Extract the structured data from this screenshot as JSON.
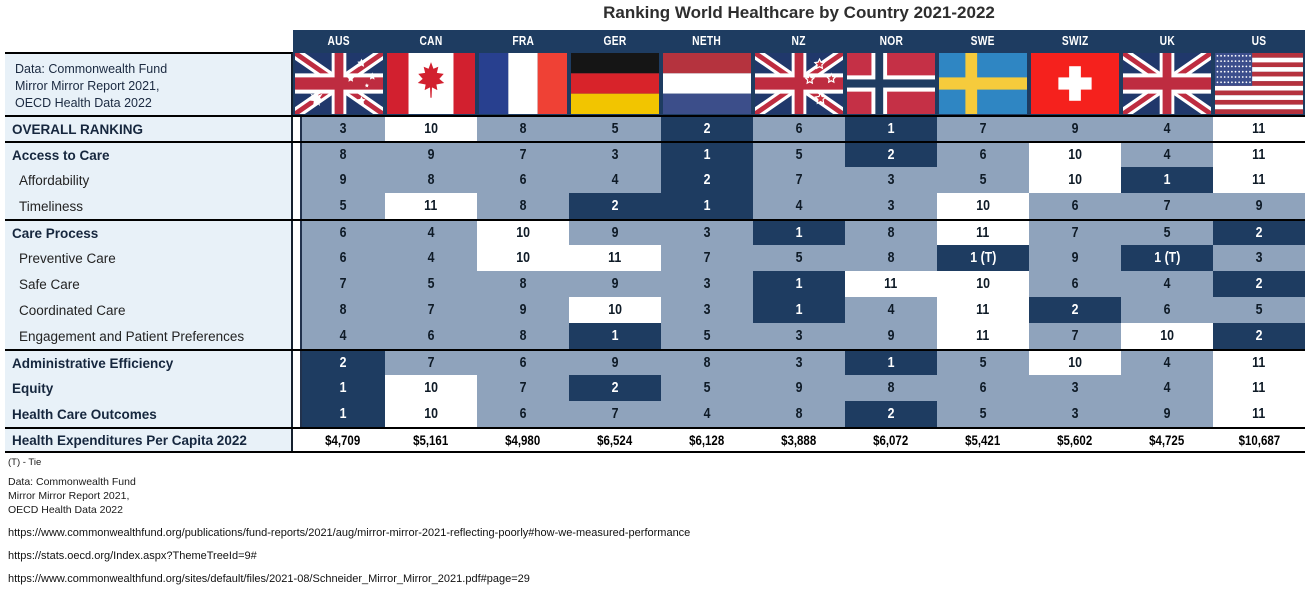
{
  "title": "Ranking World Healthcare by Country 2021-2022",
  "source_cell_lines": [
    "Data: Commonwealth Fund",
    "Mirror Mirror Report 2021,",
    "OECD Health Data 2022"
  ],
  "chart_data": {
    "type": "table",
    "title": "Ranking World Healthcare by Country 2021-2022",
    "columns": [
      "AUS",
      "CAN",
      "FRA",
      "GER",
      "NETH",
      "NZ",
      "NOR",
      "SWE",
      "SWIZ",
      "UK",
      "US"
    ],
    "flags": [
      "australia-flag",
      "canada-flag",
      "france-flag",
      "germany-flag",
      "netherlands-flag",
      "new-zealand-flag",
      "norway-flag",
      "sweden-flag",
      "switzerland-flag",
      "united-kingdom-flag",
      "united-states-flag"
    ],
    "cell_colors": {
      "grey": "#8FA3BC",
      "white": "#FFFFFF",
      "dark_navy": "#1E3C61"
    },
    "legend_note": "dark navy = top ranks, white = bottom ranks, grey = middle ranks",
    "rows": [
      {
        "label": "OVERALL RANKING",
        "bold": true,
        "sub": false,
        "section": true,
        "money": false,
        "values": [
          "3",
          "10",
          "8",
          "5",
          "2",
          "6",
          "1",
          "7",
          "9",
          "4",
          "11"
        ],
        "styles": [
          "g",
          "w",
          "g",
          "g",
          "d",
          "g",
          "d",
          "g",
          "g",
          "g",
          "w"
        ]
      },
      {
        "label": "Access to Care",
        "bold": true,
        "sub": false,
        "section": true,
        "money": false,
        "values": [
          "8",
          "9",
          "7",
          "3",
          "1",
          "5",
          "2",
          "6",
          "10",
          "4",
          "11"
        ],
        "styles": [
          "g",
          "g",
          "g",
          "g",
          "d",
          "g",
          "d",
          "g",
          "w",
          "g",
          "w"
        ]
      },
      {
        "label": "Affordability",
        "bold": false,
        "sub": true,
        "section": false,
        "money": false,
        "values": [
          "9",
          "8",
          "6",
          "4",
          "2",
          "7",
          "3",
          "5",
          "10",
          "1",
          "11"
        ],
        "styles": [
          "g",
          "g",
          "g",
          "g",
          "d",
          "g",
          "g",
          "g",
          "w",
          "d",
          "w"
        ]
      },
      {
        "label": "Timeliness",
        "bold": false,
        "sub": true,
        "section": false,
        "money": false,
        "values": [
          "5",
          "11",
          "8",
          "2",
          "1",
          "4",
          "3",
          "10",
          "6",
          "7",
          "9"
        ],
        "styles": [
          "g",
          "w",
          "g",
          "d",
          "d",
          "g",
          "g",
          "w",
          "g",
          "g",
          "g"
        ]
      },
      {
        "label": "Care Process",
        "bold": true,
        "sub": false,
        "section": true,
        "money": false,
        "values": [
          "6",
          "4",
          "10",
          "9",
          "3",
          "1",
          "8",
          "11",
          "7",
          "5",
          "2"
        ],
        "styles": [
          "g",
          "g",
          "w",
          "g",
          "g",
          "d",
          "g",
          "w",
          "g",
          "g",
          "d"
        ]
      },
      {
        "label": "Preventive Care",
        "bold": false,
        "sub": true,
        "section": false,
        "money": false,
        "values": [
          "6",
          "4",
          "10",
          "11",
          "7",
          "5",
          "8",
          "1 (T)",
          "9",
          "1 (T)",
          "3"
        ],
        "styles": [
          "g",
          "g",
          "w",
          "w",
          "g",
          "g",
          "g",
          "d",
          "g",
          "d",
          "g"
        ]
      },
      {
        "label": "Safe Care",
        "bold": false,
        "sub": true,
        "section": false,
        "money": false,
        "values": [
          "7",
          "5",
          "8",
          "9",
          "3",
          "1",
          "11",
          "10",
          "6",
          "4",
          "2"
        ],
        "styles": [
          "g",
          "g",
          "g",
          "g",
          "g",
          "d",
          "w",
          "w",
          "g",
          "g",
          "d"
        ]
      },
      {
        "label": "Coordinated Care",
        "bold": false,
        "sub": true,
        "section": false,
        "money": false,
        "values": [
          "8",
          "7",
          "9",
          "10",
          "3",
          "1",
          "4",
          "11",
          "2",
          "6",
          "5"
        ],
        "styles": [
          "g",
          "g",
          "g",
          "w",
          "g",
          "d",
          "g",
          "w",
          "d",
          "g",
          "g"
        ]
      },
      {
        "label": "Engagement and Patient Preferences",
        "bold": false,
        "sub": true,
        "section": false,
        "money": false,
        "values": [
          "4",
          "6",
          "8",
          "1",
          "5",
          "3",
          "9",
          "11",
          "7",
          "10",
          "2"
        ],
        "styles": [
          "g",
          "g",
          "g",
          "d",
          "g",
          "g",
          "g",
          "w",
          "g",
          "w",
          "d"
        ]
      },
      {
        "label": "Administrative Efficiency",
        "bold": true,
        "sub": false,
        "section": true,
        "money": false,
        "values": [
          "2",
          "7",
          "6",
          "9",
          "8",
          "3",
          "1",
          "5",
          "10",
          "4",
          "11"
        ],
        "styles": [
          "d",
          "g",
          "g",
          "g",
          "g",
          "g",
          "d",
          "g",
          "w",
          "g",
          "w"
        ]
      },
      {
        "label": "Equity",
        "bold": true,
        "sub": false,
        "section": false,
        "money": false,
        "values": [
          "1",
          "10",
          "7",
          "2",
          "5",
          "9",
          "8",
          "6",
          "3",
          "4",
          "11"
        ],
        "styles": [
          "d",
          "w",
          "g",
          "d",
          "g",
          "g",
          "g",
          "g",
          "g",
          "g",
          "w"
        ]
      },
      {
        "label": "Health Care Outcomes",
        "bold": true,
        "sub": false,
        "section": false,
        "money": false,
        "values": [
          "1",
          "10",
          "6",
          "7",
          "4",
          "8",
          "2",
          "5",
          "3",
          "9",
          "11"
        ],
        "styles": [
          "d",
          "w",
          "g",
          "g",
          "g",
          "g",
          "d",
          "g",
          "g",
          "g",
          "w"
        ]
      },
      {
        "label": "Health Expenditures Per Capita 2022",
        "bold": true,
        "sub": false,
        "section": true,
        "money": true,
        "values": [
          "$4,709",
          "$5,161",
          "$4,980",
          "$6,524",
          "$6,128",
          "$3,888",
          "$6,072",
          "$5,421",
          "$5,602",
          "$4,725",
          "$10,687"
        ],
        "styles": [
          "w",
          "w",
          "w",
          "w",
          "w",
          "w",
          "w",
          "w",
          "w",
          "w",
          "w"
        ]
      }
    ]
  },
  "footnotes": {
    "tie": "(T) - Tie",
    "source": [
      "Data: Commonwealth Fund",
      "Mirror Mirror Report 2021,",
      "OECD Health Data 2022"
    ]
  },
  "links": [
    "https://www.commonwealthfund.org/publications/fund-reports/2021/aug/mirror-mirror-2021-reflecting-poorly#how-we-measured-performance",
    "https://stats.oecd.org/Index.aspx?ThemeTreeId=9#",
    "https://www.commonwealthfund.org/sites/default/files/2021-08/Schneider_Mirror_Mirror_2021.pdf#page=29"
  ]
}
